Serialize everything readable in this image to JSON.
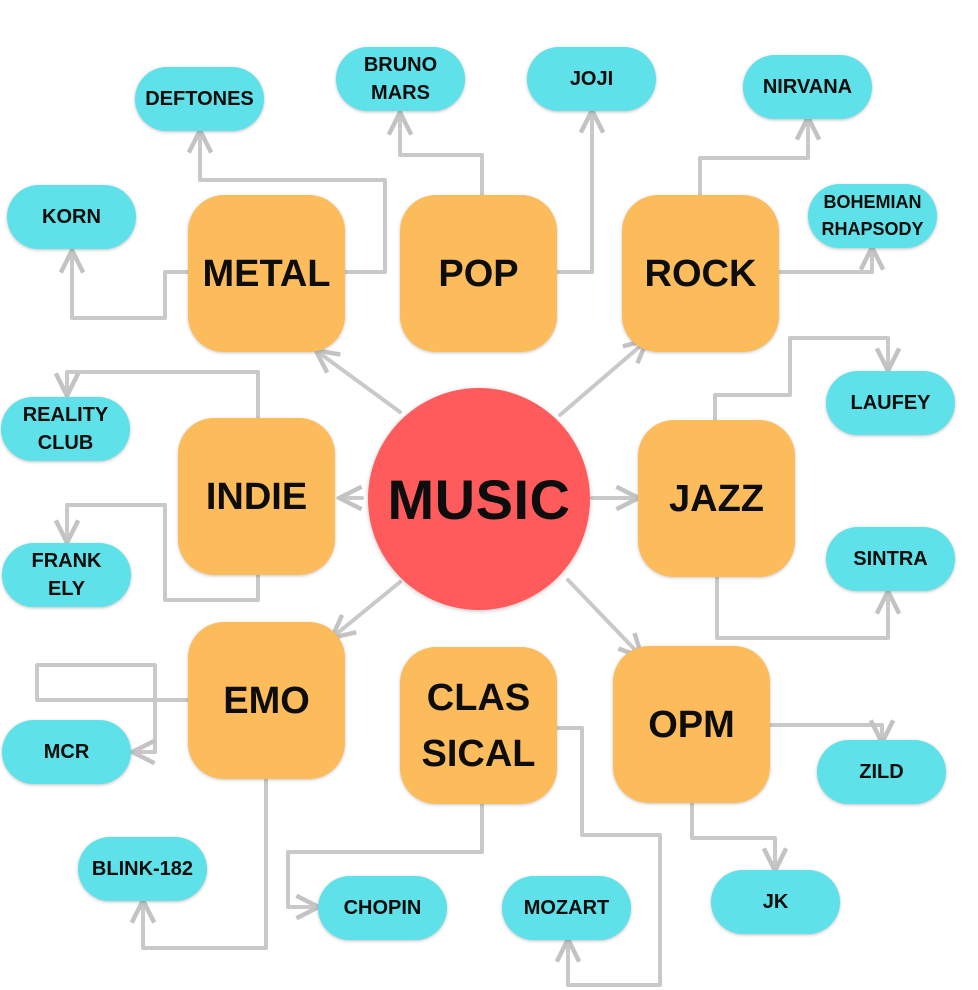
{
  "center": {
    "label": "MUSIC",
    "color": "#ff5a5c"
  },
  "genres": {
    "metal": "METAL",
    "pop": "POP",
    "rock": "ROCK",
    "indie": "INDIE",
    "jazz": "JAZZ",
    "emo": "EMO",
    "classical": "CLAS\nSICAL",
    "opm": "OPM"
  },
  "artists": {
    "deftones": "DEFTONES",
    "korn": "KORN",
    "bruno_mars": "BRUNO\nMARS",
    "joji": "JOJI",
    "nirvana": "NIRVANA",
    "bohemian_rhapsody": "BOHEMIAN\nRHAPSODY",
    "reality_club": "REALITY\nCLUB",
    "frank_ely": "FRANK\nELY",
    "laufey": "LAUFEY",
    "sintra": "SINTRA",
    "mcr": "MCR",
    "blink_182": "BLINK-182",
    "chopin": "CHOPIN",
    "mozart": "MOZART",
    "zild": "ZILD",
    "jk": "JK"
  },
  "colors": {
    "genre": "#fcbc5c",
    "artist": "#5ee1e8",
    "connector": "#c8c8c8"
  }
}
